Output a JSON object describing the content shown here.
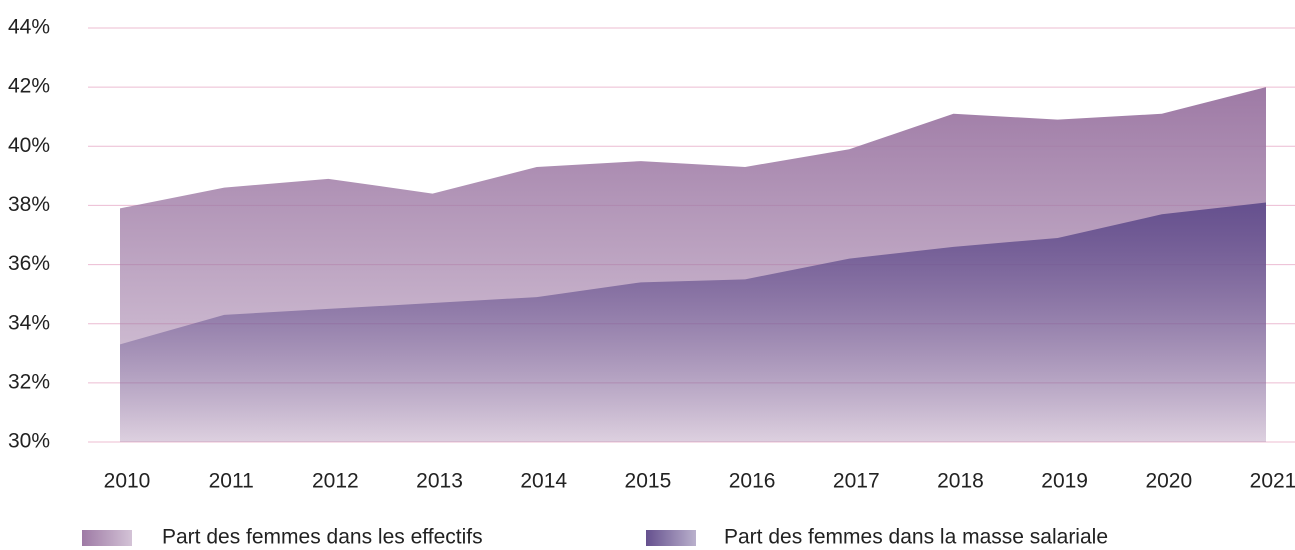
{
  "chart_data": {
    "type": "area",
    "categories": [
      "2010",
      "2011",
      "2012",
      "2013",
      "2014",
      "2015",
      "2016",
      "2017",
      "2018",
      "2019",
      "2020",
      "2021"
    ],
    "series": [
      {
        "name": "Part des femmes dans les effectifs",
        "color": "#9e7aa5",
        "values": [
          37.9,
          38.6,
          38.9,
          38.4,
          39.3,
          39.5,
          39.3,
          39.9,
          41.1,
          40.9,
          41.1,
          42.0
        ]
      },
      {
        "name": "Part des femmes dans la masse salariale",
        "color": "#65508e",
        "values": [
          33.3,
          34.3,
          34.5,
          34.7,
          34.9,
          35.4,
          35.5,
          36.2,
          36.6,
          36.9,
          37.7,
          38.1
        ]
      }
    ],
    "ylim": [
      30,
      44
    ],
    "yticks": [
      {
        "value": 30,
        "label": "30%"
      },
      {
        "value": 32,
        "label": "32%"
      },
      {
        "value": 34,
        "label": "34%"
      },
      {
        "value": 36,
        "label": "36%"
      },
      {
        "value": 38,
        "label": "38%"
      },
      {
        "value": 40,
        "label": "40%"
      },
      {
        "value": 42,
        "label": "42%"
      },
      {
        "value": 44,
        "label": "44%"
      }
    ],
    "grid": true,
    "legend": "bottom"
  }
}
